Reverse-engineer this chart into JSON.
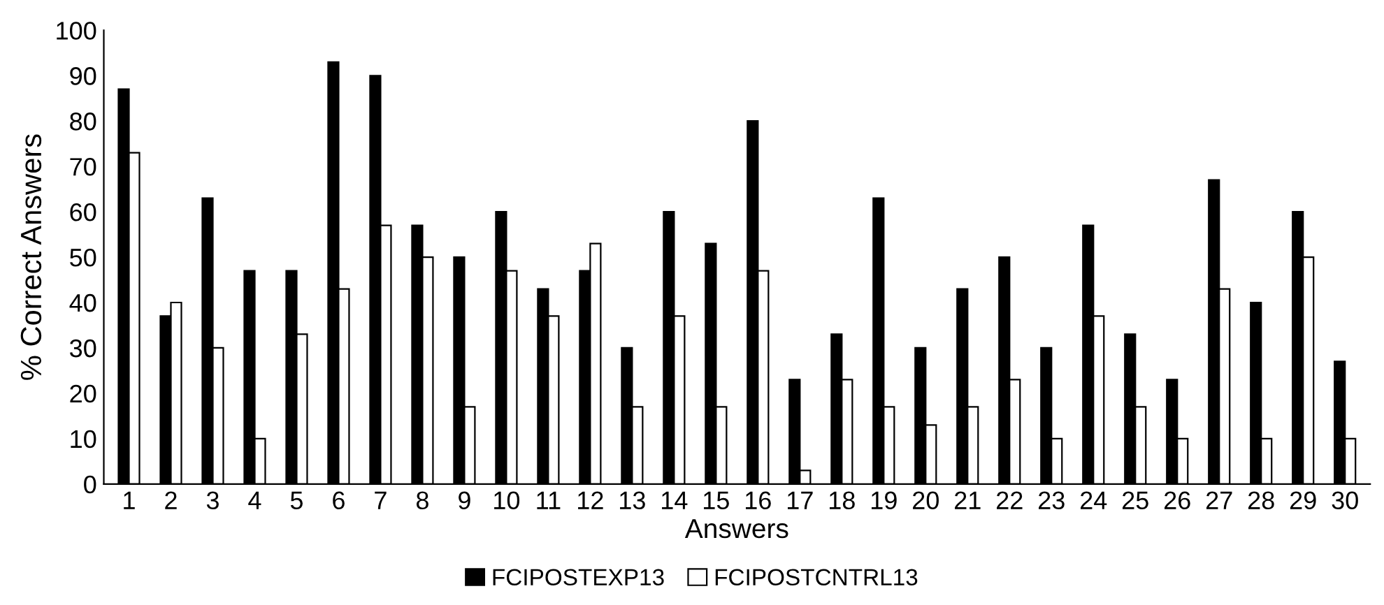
{
  "chart_data": {
    "type": "bar",
    "xlabel": "Answers",
    "ylabel": "% Correct Answers",
    "categories": [
      "1",
      "2",
      "3",
      "4",
      "5",
      "6",
      "7",
      "8",
      "9",
      "10",
      "11",
      "12",
      "13",
      "14",
      "15",
      "16",
      "17",
      "18",
      "19",
      "20",
      "21",
      "22",
      "23",
      "24",
      "25",
      "26",
      "27",
      "28",
      "29",
      "30"
    ],
    "series": [
      {
        "name": "FCIPOSTEXP13",
        "color": "#000000",
        "values": [
          87,
          37,
          63,
          47,
          47,
          93,
          90,
          57,
          50,
          60,
          43,
          47,
          30,
          60,
          53,
          80,
          23,
          33,
          63,
          30,
          43,
          50,
          30,
          57,
          33,
          23,
          67,
          40,
          60,
          27
        ]
      },
      {
        "name": "FCIPOSTCNTRL13",
        "color": "#ffffff",
        "values": [
          73,
          40,
          30,
          10,
          33,
          43,
          57,
          50,
          17,
          47,
          37,
          53,
          17,
          37,
          17,
          47,
          3,
          23,
          17,
          13,
          17,
          23,
          10,
          37,
          17,
          10,
          43,
          10,
          50,
          10
        ]
      }
    ],
    "ylim": [
      0,
      100
    ],
    "yticks": [
      0,
      10,
      20,
      30,
      40,
      50,
      60,
      70,
      80,
      90,
      100
    ],
    "grid": false,
    "legend": "bottom"
  }
}
